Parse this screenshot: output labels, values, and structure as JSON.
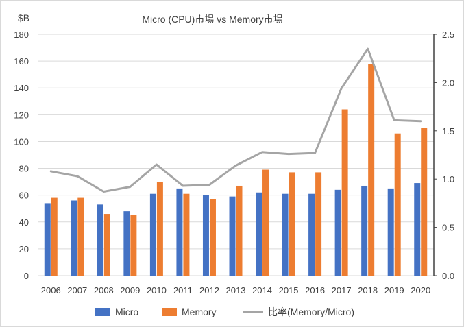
{
  "chart_data": {
    "type": "bar",
    "title": "Micro (CPU)市場 vs Memory市場",
    "ylabel": "$B",
    "categories": [
      "2006",
      "2007",
      "2008",
      "2009",
      "2010",
      "2011",
      "2012",
      "2013",
      "2014",
      "2015",
      "2016",
      "2017",
      "2018",
      "2019",
      "2020"
    ],
    "y_ticks": [
      "0",
      "20",
      "40",
      "60",
      "80",
      "100",
      "120",
      "140",
      "160",
      "180"
    ],
    "y2_ticks": [
      "0.0",
      "0.5",
      "1.0",
      "1.5",
      "2.0",
      "2.5"
    ],
    "ylim": [
      0,
      180
    ],
    "y2lim": [
      0,
      2.5
    ],
    "gridlines": true,
    "legend_position": "bottom",
    "series": [
      {
        "name": "Micro",
        "type": "bar",
        "axis": "left",
        "color": "#4472C4",
        "values": [
          54,
          56,
          53,
          48,
          61,
          65,
          60,
          59,
          62,
          61,
          61,
          64,
          67,
          65,
          69
        ]
      },
      {
        "name": "Memory",
        "type": "bar",
        "axis": "left",
        "color": "#ED7D31",
        "values": [
          58,
          58,
          46,
          45,
          70,
          61,
          57,
          67,
          79,
          77,
          77,
          124,
          158,
          106,
          110
        ]
      },
      {
        "name": "比率(Memory/Micro)",
        "type": "line",
        "axis": "right",
        "color": "#A5A5A5",
        "values": [
          1.08,
          1.03,
          0.87,
          0.92,
          1.15,
          0.93,
          0.94,
          1.14,
          1.28,
          1.26,
          1.27,
          1.94,
          2.35,
          1.61,
          1.6
        ]
      }
    ]
  }
}
